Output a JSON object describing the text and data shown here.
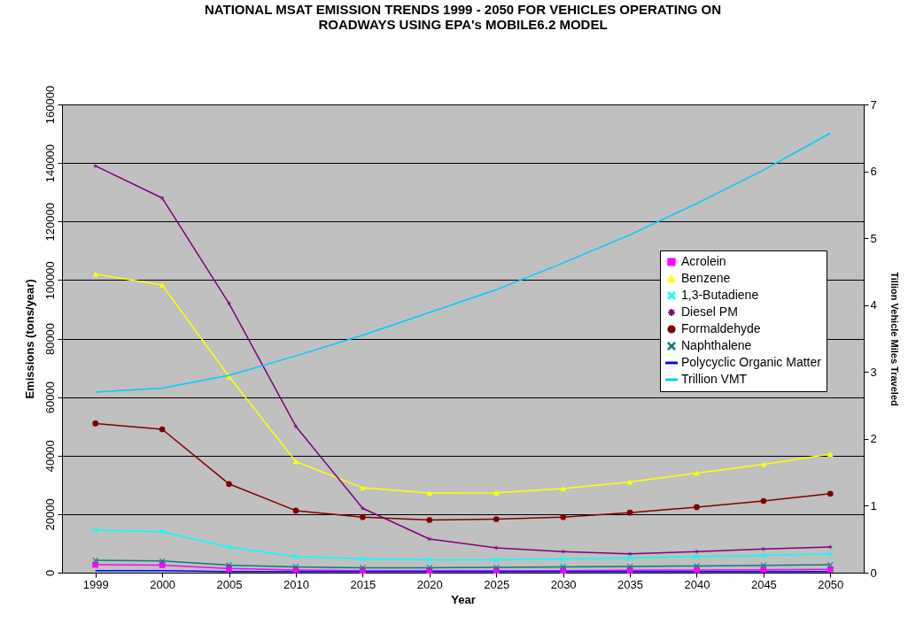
{
  "chart_data": {
    "type": "line",
    "title": "NATIONAL MSAT EMISSION TRENDS 1999 - 2050 FOR VEHICLES OPERATING ON ROADWAYS USING EPA's MOBILE6.2 MODEL",
    "xlabel": "Year",
    "ylabel": "Emissions (tons/year)",
    "y2label": "Tillion Vehicle Miles Traveled",
    "categories": [
      "1999",
      "2000",
      "2005",
      "2010",
      "2015",
      "2020",
      "2025",
      "2030",
      "2035",
      "2040",
      "2045",
      "2050"
    ],
    "ylim": [
      0,
      160000
    ],
    "yticks": [
      0,
      20000,
      40000,
      60000,
      80000,
      100000,
      120000,
      140000,
      160000
    ],
    "y2lim": [
      0,
      7
    ],
    "y2ticks": [
      0,
      1,
      2,
      3,
      4,
      5,
      6,
      7
    ],
    "grid": "y",
    "legend": "right",
    "series": [
      {
        "name": "Acrolein",
        "color": "#ff00ff",
        "marker": "square",
        "values": [
          2700,
          2600,
          1400,
          900,
          700,
          700,
          700,
          700,
          800,
          900,
          1000,
          1100
        ]
      },
      {
        "name": "Benzene",
        "color": "#ffff00",
        "marker": "triangle",
        "values": [
          102000,
          98300,
          67000,
          38000,
          29000,
          27200,
          27300,
          28700,
          31000,
          34000,
          37000,
          40500
        ]
      },
      {
        "name": "1,3-Butadiene",
        "color": "#00ffff",
        "marker": "cross",
        "values": [
          14500,
          14000,
          8700,
          5500,
          4800,
          4400,
          4400,
          4700,
          5000,
          5500,
          5900,
          6400
        ]
      },
      {
        "name": "Diesel PM",
        "color": "#800080",
        "marker": "star",
        "values": [
          139000,
          128000,
          92000,
          50000,
          22000,
          11500,
          8500,
          7200,
          6400,
          7200,
          8100,
          8800
        ]
      },
      {
        "name": "Formaldehyde",
        "color": "#800000",
        "marker": "circle",
        "values": [
          51000,
          49000,
          30300,
          21200,
          19000,
          18000,
          18300,
          19000,
          20500,
          22400,
          24500,
          27000
        ]
      },
      {
        "name": "Naphthalene",
        "color": "#008080",
        "marker": "cross",
        "values": [
          4200,
          4000,
          2600,
          2000,
          1700,
          1700,
          1800,
          2000,
          2100,
          2300,
          2500,
          2700
        ]
      },
      {
        "name": "Polycyclic Organic Matter",
        "color": "#0000ff",
        "marker": "none",
        "values": [
          700,
          700,
          400,
          400,
          400,
          400,
          400,
          400,
          400,
          400,
          400,
          400
        ]
      },
      {
        "name": "Trillion VMT",
        "color": "#00ccff",
        "marker": "none",
        "axis": "y2",
        "values": [
          2.7,
          2.76,
          2.95,
          3.24,
          3.55,
          3.89,
          4.23,
          4.63,
          5.05,
          5.52,
          6.02,
          6.57
        ]
      }
    ]
  }
}
